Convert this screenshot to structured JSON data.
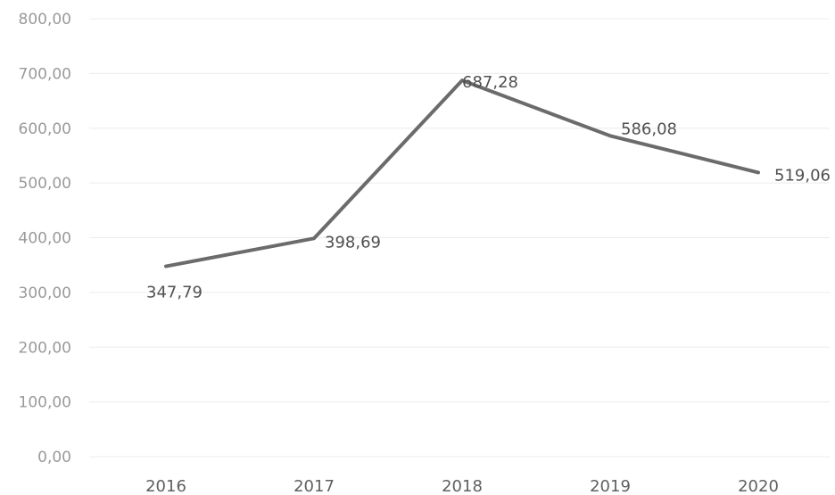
{
  "chart_data": {
    "type": "line",
    "title": "",
    "xlabel": "",
    "ylabel": "",
    "categories": [
      "2016",
      "2017",
      "2018",
      "2019",
      "2020"
    ],
    "series": [
      {
        "values": [
          347.79,
          398.69,
          687.28,
          586.08,
          519.06
        ],
        "data_labels": [
          "347,79",
          "398,69",
          "687,28",
          "586,08",
          "519,06"
        ],
        "color": "#6b6b6b"
      }
    ],
    "ylim": [
      0,
      800
    ],
    "yticks": [
      0,
      100,
      200,
      300,
      400,
      500,
      600,
      700,
      800
    ],
    "ytick_labels": [
      "0,00",
      "100,00",
      "200,00",
      "300,00",
      "400,00",
      "500,00",
      "600,00",
      "700,00",
      "800,00"
    ],
    "grid": true,
    "legend": "none"
  }
}
